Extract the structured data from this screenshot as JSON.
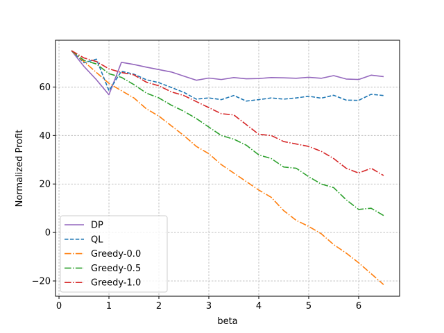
{
  "chart_data": {
    "type": "line",
    "title": "",
    "xlabel": "beta",
    "ylabel": "Normalized Profit",
    "xlim": [
      -0.07,
      6.82
    ],
    "ylim": [
      -26.3,
      79.3
    ],
    "xticks": [
      0,
      1,
      2,
      3,
      4,
      5,
      6
    ],
    "xtick_labels": [
      "0",
      "1",
      "2",
      "3",
      "4",
      "5",
      "6"
    ],
    "yticks": [
      -20,
      0,
      20,
      40,
      60
    ],
    "ytick_labels": [
      "−20",
      "0",
      "20",
      "40",
      "60"
    ],
    "grid": true,
    "legend_position": "lower-left",
    "x": [
      0.25,
      0.5,
      0.75,
      1.0,
      1.25,
      1.5,
      1.75,
      2.0,
      2.25,
      2.5,
      2.75,
      3.0,
      3.25,
      3.5,
      3.75,
      4.0,
      4.25,
      4.5,
      4.75,
      5.0,
      5.25,
      5.5,
      5.75,
      6.0,
      6.25,
      6.5
    ],
    "series": [
      {
        "name": "DP",
        "color": "#9467bd",
        "dash": "solid",
        "values": [
          75.0,
          68.5,
          63.0,
          56.8,
          70.2,
          69.3,
          68.2,
          67.2,
          66.2,
          64.5,
          62.8,
          63.7,
          63.1,
          63.9,
          63.4,
          63.5,
          63.9,
          63.8,
          63.6,
          64.0,
          63.6,
          64.7,
          63.3,
          63.1,
          64.9,
          64.3
        ]
      },
      {
        "name": "QL",
        "color": "#1f77b4",
        "dash": "dashed",
        "values": [
          75.0,
          70.0,
          71.5,
          58.5,
          66.5,
          65.3,
          63.0,
          61.8,
          59.8,
          57.8,
          55.0,
          55.5,
          54.8,
          56.5,
          54.2,
          54.8,
          55.5,
          55.0,
          55.5,
          56.2,
          55.4,
          56.6,
          54.6,
          54.5,
          57.0,
          56.5
        ]
      },
      {
        "name": "Greedy-0.0",
        "color": "#ff7f0e",
        "dash": "dashdot",
        "values": [
          75.0,
          70.5,
          66.0,
          61.5,
          58.5,
          55.5,
          51.0,
          48.0,
          44.0,
          40.0,
          35.5,
          32.5,
          28.0,
          24.5,
          21.0,
          17.5,
          14.5,
          9.0,
          5.0,
          2.5,
          -0.5,
          -5.0,
          -8.5,
          -12.5,
          -17.0,
          -21.5
        ]
      },
      {
        "name": "Greedy-0.5",
        "color": "#2ca02c",
        "dash": "dashdot",
        "values": [
          75.0,
          71.0,
          69.5,
          65.5,
          64.0,
          61.0,
          57.5,
          55.5,
          52.5,
          50.0,
          47.0,
          43.5,
          40.0,
          38.5,
          36.0,
          32.0,
          30.5,
          27.0,
          26.5,
          23.0,
          20.0,
          18.5,
          13.5,
          9.5,
          10.0,
          7.0
        ]
      },
      {
        "name": "Greedy-1.0",
        "color": "#d62728",
        "dash": "dashdot",
        "values": [
          75.0,
          72.0,
          70.5,
          67.5,
          66.0,
          65.0,
          62.0,
          60.5,
          58.0,
          56.5,
          54.0,
          51.5,
          49.0,
          48.5,
          44.5,
          40.5,
          40.0,
          37.5,
          36.5,
          35.5,
          33.5,
          30.5,
          26.5,
          24.5,
          26.5,
          23.5
        ]
      }
    ]
  }
}
